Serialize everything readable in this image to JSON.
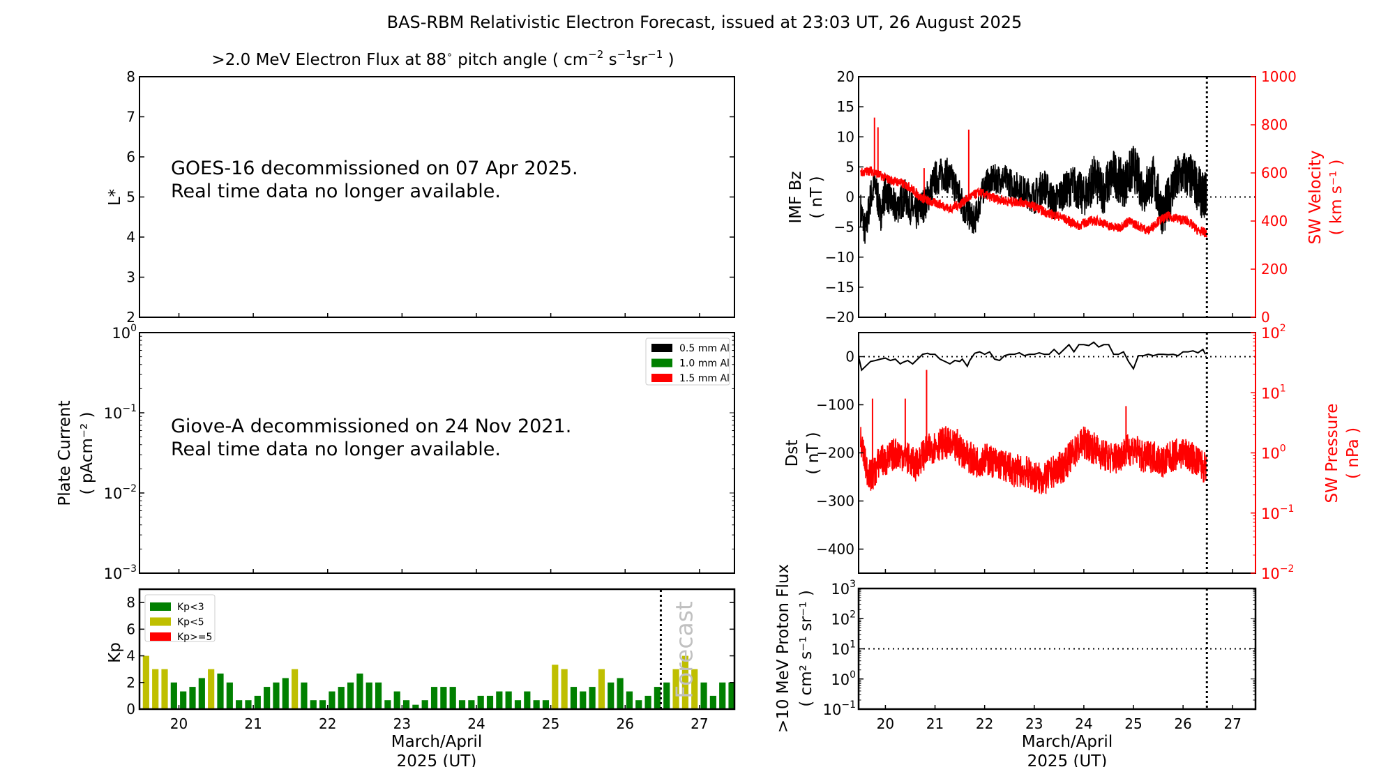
{
  "figure": {
    "title": "BAS-RBM Relativistic Electron Forecast, issued at 23:03 UT, 26 August 2025",
    "xlabel_line1": "March/April",
    "xlabel_line2": "2025 (UT)",
    "forecast_label": "Forecast",
    "forecast_day": 26.48
  },
  "chart_data": [
    {
      "id": "electron-flux",
      "type": "heatmap",
      "title": ">2.0 MeV Electron Flux at 88° pitch angle ( cm⁻² s⁻¹ sr⁻¹ )",
      "title_parts": {
        "main": ">2.0 MeV Electron Flux at 88",
        "deg": "∘",
        "rest": " pitch angle ( cm",
        "e1": "−2",
        "s": " s",
        "e2": "−1",
        "sr": "sr",
        "e3": "−1",
        "close": " )"
      },
      "ylabel": "L*",
      "ylim": [
        2,
        8
      ],
      "yticks": [
        "2",
        "3",
        "4",
        "5",
        "6",
        "7",
        "8"
      ],
      "xlim": [
        19.47,
        27.47
      ],
      "message_line1": "GOES-16 decommissioned on 07 Apr 2025.",
      "message_line2": "Real time data no longer available.",
      "values": []
    },
    {
      "id": "plate-current",
      "type": "line",
      "ylabel_line1": "Plate Current",
      "ylabel_line2": "( pAcm⁻² )",
      "yscale": "log",
      "ylim": [
        0.001,
        1
      ],
      "yticks": [
        {
          "base": "10",
          "exp": "−3"
        },
        {
          "base": "10",
          "exp": "−2"
        },
        {
          "base": "10",
          "exp": "−1"
        },
        {
          "base": "10",
          "exp": "0"
        }
      ],
      "xlim": [
        19.47,
        27.47
      ],
      "legend": [
        {
          "label": "0.5 mm Al",
          "color": "#000000"
        },
        {
          "label": "1.0 mm Al",
          "color": "#008000"
        },
        {
          "label": "1.5 mm Al",
          "color": "#ff0000"
        }
      ],
      "legend_position": "top-right",
      "message_line1": "Giove-A decommissioned on 24 Nov 2021.",
      "message_line2": "Real time data no longer available.",
      "series": []
    },
    {
      "id": "kp-index",
      "type": "bar",
      "ylabel": "Kp",
      "ylim": [
        0,
        9
      ],
      "yticks": [
        "0",
        "2",
        "4",
        "6",
        "8"
      ],
      "xlim": [
        19.47,
        27.47
      ],
      "xticks": [
        "20",
        "21",
        "22",
        "23",
        "24",
        "25",
        "26",
        "27"
      ],
      "bar_start_day": 19.375,
      "bar_interval_days": 0.125,
      "values": [
        3.67,
        4,
        3,
        3,
        2,
        1.33,
        1.67,
        2.33,
        3,
        2.67,
        2,
        0.67,
        0.67,
        1,
        1.67,
        2,
        2.33,
        3,
        2,
        0.67,
        0.67,
        1.33,
        1.67,
        2,
        2.67,
        2,
        2,
        0.67,
        1.33,
        0.67,
        0.33,
        0.67,
        1.67,
        1.67,
        1.67,
        0.67,
        0.67,
        1,
        1,
        1.33,
        1.33,
        0.67,
        1.33,
        0.67,
        0.67,
        3.33,
        3,
        1.67,
        1.33,
        1.67,
        3,
        2,
        2.33,
        1.33,
        0.67,
        1,
        1.67,
        2,
        3,
        4,
        3,
        2,
        1,
        2,
        2
      ],
      "legend": [
        {
          "label": "Kp<3",
          "color": "#008000"
        },
        {
          "label": "Kp<5",
          "color": "#bfbf00"
        },
        {
          "label": "Kp>=5",
          "color": "#ff0000"
        }
      ],
      "legend_position": "top-left",
      "thresholds": [
        3,
        5
      ]
    },
    {
      "id": "imf-bz-sw-velocity",
      "type": "line",
      "ylabel_line1": "IMF Bz",
      "ylabel_line2": "( nT )",
      "ylim": [
        -20,
        20
      ],
      "yticks": [
        "−20",
        "−15",
        "−10",
        "−5",
        "0",
        "5",
        "10",
        "15",
        "20"
      ],
      "y2label_line1": "SW Velocity",
      "y2label_line2": "( km s⁻¹ )",
      "y2lim": [
        0,
        1000
      ],
      "y2ticks": [
        "0",
        "200",
        "400",
        "600",
        "800",
        "1000"
      ],
      "xlim": [
        19.46,
        27.46
      ],
      "series": [
        {
          "name": "IMF Bz",
          "axis": "left",
          "color": "#000000",
          "x": [
            19.5,
            19.6,
            19.7,
            19.8,
            19.9,
            20.0,
            20.2,
            20.4,
            20.6,
            20.8,
            21.0,
            21.2,
            21.4,
            21.6,
            21.8,
            22.0,
            22.2,
            22.4,
            22.6,
            22.8,
            23.0,
            23.2,
            23.4,
            23.6,
            23.8,
            24.0,
            24.2,
            24.4,
            24.6,
            24.8,
            25.0,
            25.2,
            25.4,
            25.6,
            25.8,
            26.0,
            26.2,
            26.4,
            26.48
          ],
          "y": [
            -2,
            -6,
            0,
            2,
            -3,
            1,
            -2,
            0,
            -3,
            -1,
            3,
            4,
            2,
            -2,
            -4,
            2,
            3,
            3,
            2,
            1,
            0,
            2,
            -1,
            1,
            2,
            0,
            3,
            1,
            4,
            2,
            5,
            1,
            3,
            -3,
            2,
            4,
            3,
            0,
            1
          ],
          "band": [
            3,
            3,
            3,
            3,
            3,
            3,
            3,
            3,
            3,
            3,
            3,
            3,
            3,
            3,
            2.5,
            2.5,
            2.5,
            2.5,
            2.5,
            2.5,
            3,
            3,
            3,
            3,
            3.5,
            3.5,
            4,
            4,
            4,
            4,
            4,
            4,
            4,
            4,
            4,
            4,
            4,
            4,
            4
          ]
        },
        {
          "name": "SW Velocity",
          "axis": "right",
          "color": "#ff0000",
          "x": [
            19.5,
            19.7,
            19.9,
            20.1,
            20.3,
            20.5,
            20.7,
            20.9,
            21.1,
            21.3,
            21.5,
            21.7,
            21.9,
            22.1,
            22.3,
            22.5,
            22.7,
            22.9,
            23.1,
            23.3,
            23.5,
            23.7,
            23.9,
            24.1,
            24.3,
            24.5,
            24.7,
            24.9,
            25.1,
            25.3,
            25.5,
            25.7,
            25.9,
            26.1,
            26.3,
            26.48
          ],
          "y": [
            600,
            610,
            590,
            570,
            560,
            540,
            500,
            480,
            470,
            450,
            470,
            500,
            520,
            500,
            490,
            480,
            480,
            470,
            450,
            430,
            420,
            400,
            380,
            400,
            400,
            380,
            370,
            400,
            380,
            360,
            400,
            420,
            410,
            400,
            360,
            350
          ],
          "spikes": [
            {
              "x": 19.78,
              "y": 830
            },
            {
              "x": 19.85,
              "y": 790
            },
            {
              "x": 20.78,
              "y": 620
            },
            {
              "x": 21.68,
              "y": 780
            }
          ]
        }
      ],
      "zero_line": 0
    },
    {
      "id": "dst-sw-pressure",
      "type": "line",
      "ylabel_line1": "Dst",
      "ylabel_line2": "( nT )",
      "ylim": [
        -450,
        50
      ],
      "yticks": [
        "−400",
        "−300",
        "−200",
        "−100",
        "0"
      ],
      "y2label_line1": "SW Pressure",
      "y2label_line2": "( nPa )",
      "y2scale": "log",
      "y2lim": [
        0.01,
        100
      ],
      "y2ticks": [
        {
          "base": "10",
          "exp": "−2"
        },
        {
          "base": "10",
          "exp": "−1"
        },
        {
          "base": "10",
          "exp": "0"
        },
        {
          "base": "10",
          "exp": "1"
        },
        {
          "base": "10",
          "exp": "2"
        }
      ],
      "xlim": [
        19.46,
        27.46
      ],
      "series": [
        {
          "name": "Dst",
          "axis": "left",
          "color": "#000000",
          "x": [
            19.46,
            19.52,
            19.6,
            19.7,
            19.8,
            19.9,
            20.0,
            20.1,
            20.2,
            20.3,
            20.35,
            20.45,
            20.55,
            20.65,
            20.75,
            20.85,
            20.9,
            21.0,
            21.1,
            21.2,
            21.3,
            21.4,
            21.5,
            21.55,
            21.65,
            21.7,
            21.8,
            21.9,
            22.0,
            22.1,
            22.2,
            22.3,
            22.4,
            22.5,
            22.6,
            22.7,
            22.8,
            22.9,
            23.0,
            23.1,
            23.2,
            23.3,
            23.4,
            23.5,
            23.6,
            23.7,
            23.8,
            23.9,
            24.0,
            24.1,
            24.2,
            24.3,
            24.4,
            24.5,
            24.6,
            24.7,
            24.8,
            24.9,
            25.0,
            25.1,
            25.2,
            25.3,
            25.4,
            25.5,
            25.6,
            25.7,
            25.8,
            25.9,
            26.0,
            26.1,
            26.2,
            26.3,
            26.4,
            26.45
          ],
          "y": [
            0,
            -28,
            -20,
            -10,
            -8,
            -5,
            -3,
            -8,
            -5,
            -15,
            -12,
            -8,
            -15,
            -5,
            5,
            7,
            5,
            5,
            -5,
            -10,
            -15,
            -8,
            -10,
            -5,
            -20,
            -8,
            7,
            10,
            5,
            10,
            -5,
            -8,
            2,
            5,
            5,
            8,
            2,
            5,
            5,
            8,
            5,
            5,
            15,
            5,
            15,
            25,
            10,
            25,
            25,
            23,
            30,
            20,
            25,
            25,
            5,
            5,
            10,
            -10,
            -25,
            2,
            2,
            5,
            2,
            5,
            5,
            4,
            5,
            2,
            10,
            10,
            12,
            8,
            15,
            5
          ]
        },
        {
          "name": "SW Pressure",
          "axis": "right",
          "color": "#ff0000",
          "x": [
            19.5,
            19.6,
            19.7,
            19.8,
            19.9,
            20.0,
            20.2,
            20.4,
            20.6,
            20.8,
            21.0,
            21.2,
            21.4,
            21.6,
            21.8,
            22.0,
            22.2,
            22.4,
            22.6,
            22.8,
            23.0,
            23.2,
            23.4,
            23.6,
            23.8,
            24.0,
            24.2,
            24.4,
            24.6,
            24.8,
            25.0,
            25.2,
            25.4,
            25.6,
            25.8,
            26.0,
            26.2,
            26.4,
            26.48
          ],
          "y": [
            1.5,
            0.6,
            0.4,
            0.5,
            0.8,
            0.7,
            1.0,
            0.9,
            0.6,
            1.0,
            1.3,
            1.5,
            1.2,
            1.0,
            0.7,
            0.8,
            0.7,
            0.6,
            0.5,
            0.5,
            0.4,
            0.35,
            0.5,
            0.6,
            1.0,
            1.5,
            1.2,
            0.9,
            0.8,
            1.0,
            1.2,
            0.8,
            0.9,
            0.7,
            0.9,
            1.0,
            0.8,
            0.6,
            0.5
          ],
          "spikes": [
            {
              "x": 19.74,
              "y": 8
            },
            {
              "x": 20.4,
              "y": 8
            },
            {
              "x": 20.83,
              "y": 24
            },
            {
              "x": 21.45,
              "y": 2.5
            },
            {
              "x": 24.85,
              "y": 6
            }
          ]
        }
      ],
      "zero_line": 0
    },
    {
      "id": "proton-flux",
      "type": "line",
      "ylabel_line1": ">10 MeV Proton Flux",
      "ylabel_line2": "( cm² s⁻¹ sr⁻¹ )",
      "yscale": "log",
      "ylim": [
        0.1,
        1000
      ],
      "yticks": [
        {
          "base": "10",
          "exp": "−1"
        },
        {
          "base": "10",
          "exp": "0"
        },
        {
          "base": "10",
          "exp": "1"
        },
        {
          "base": "10",
          "exp": "2"
        },
        {
          "base": "10",
          "exp": "3"
        }
      ],
      "xlim": [
        19.46,
        27.46
      ],
      "xticks": [
        "20",
        "21",
        "22",
        "23",
        "24",
        "25",
        "26",
        "27"
      ],
      "threshold_line": 10,
      "series": []
    }
  ]
}
